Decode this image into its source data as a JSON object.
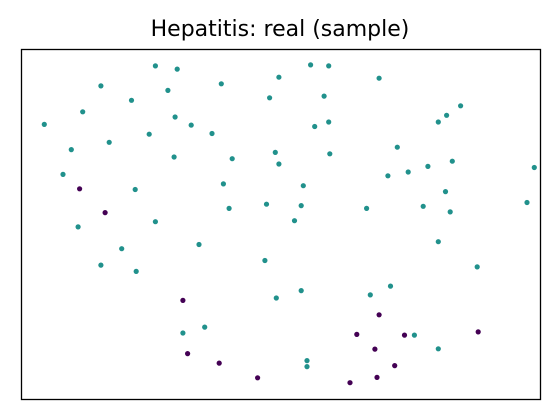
{
  "chart_data": {
    "type": "scatter",
    "title": "Hepatitis: real (sample)",
    "xlabel": "",
    "ylabel": "",
    "axes_visible": false,
    "grid": false,
    "legend": "none",
    "colors": {
      "class_a": "#440154",
      "class_b": "#21918c",
      "frame": "#000000"
    },
    "xlim": [
      0,
      100
    ],
    "ylim": [
      0,
      100
    ],
    "series": [
      {
        "color": "#440154",
        "points": [
          [
            11.2,
            60.2
          ],
          [
            16.1,
            53.4
          ],
          [
            31.1,
            28.3
          ],
          [
            32.0,
            13.1
          ],
          [
            38.1,
            10.4
          ],
          [
            45.5,
            6.2
          ],
          [
            64.6,
            18.6
          ],
          [
            68.1,
            14.4
          ],
          [
            68.9,
            24.2
          ],
          [
            71.9,
            9.7
          ],
          [
            73.8,
            18.4
          ],
          [
            63.3,
            4.8
          ],
          [
            68.5,
            6.3
          ],
          [
            88.0,
            19.3
          ]
        ]
      },
      {
        "color": "#21918c",
        "points": [
          [
            4.4,
            78.6
          ],
          [
            11.8,
            82.2
          ],
          [
            15.3,
            89.6
          ],
          [
            25.8,
            95.3
          ],
          [
            30.0,
            94.4
          ],
          [
            28.2,
            88.3
          ],
          [
            38.5,
            90.2
          ],
          [
            49.6,
            92.1
          ],
          [
            55.7,
            95.6
          ],
          [
            59.2,
            95.3
          ],
          [
            68.9,
            91.8
          ],
          [
            47.8,
            86.2
          ],
          [
            58.3,
            86.7
          ],
          [
            56.5,
            78.0
          ],
          [
            59.2,
            79.3
          ],
          [
            84.6,
            83.9
          ],
          [
            81.9,
            81.2
          ],
          [
            80.3,
            79.3
          ],
          [
            21.2,
            85.5
          ],
          [
            16.9,
            73.5
          ],
          [
            29.6,
            80.7
          ],
          [
            32.7,
            78.4
          ],
          [
            36.7,
            76.0
          ],
          [
            24.6,
            75.8
          ],
          [
            9.6,
            71.4
          ],
          [
            8.0,
            64.3
          ],
          [
            29.4,
            69.3
          ],
          [
            40.6,
            68.8
          ],
          [
            48.9,
            70.6
          ],
          [
            49.6,
            67.3
          ],
          [
            59.4,
            70.2
          ],
          [
            72.4,
            72.1
          ],
          [
            74.5,
            65.0
          ],
          [
            70.6,
            63.9
          ],
          [
            78.3,
            66.6
          ],
          [
            83.0,
            68.1
          ],
          [
            98.8,
            66.3
          ],
          [
            54.3,
            61.1
          ],
          [
            21.9,
            60.0
          ],
          [
            38.9,
            61.6
          ],
          [
            40.0,
            54.6
          ],
          [
            47.2,
            55.8
          ],
          [
            53.9,
            55.4
          ],
          [
            66.5,
            54.6
          ],
          [
            77.4,
            55.2
          ],
          [
            81.7,
            59.4
          ],
          [
            82.6,
            53.6
          ],
          [
            97.4,
            56.3
          ],
          [
            10.9,
            49.3
          ],
          [
            25.8,
            50.8
          ],
          [
            19.3,
            43.1
          ],
          [
            34.2,
            44.3
          ],
          [
            15.3,
            38.4
          ],
          [
            22.1,
            36.6
          ],
          [
            46.9,
            39.7
          ],
          [
            52.6,
            51.1
          ],
          [
            80.3,
            45.1
          ],
          [
            87.8,
            37.9
          ],
          [
            49.1,
            29.0
          ],
          [
            53.9,
            31.1
          ],
          [
            67.2,
            29.9
          ],
          [
            71.1,
            32.4
          ],
          [
            31.1,
            19.0
          ],
          [
            35.3,
            20.7
          ],
          [
            55.0,
            11.1
          ],
          [
            55.0,
            9.4
          ],
          [
            75.7,
            18.4
          ],
          [
            80.3,
            14.5
          ]
        ]
      }
    ]
  }
}
